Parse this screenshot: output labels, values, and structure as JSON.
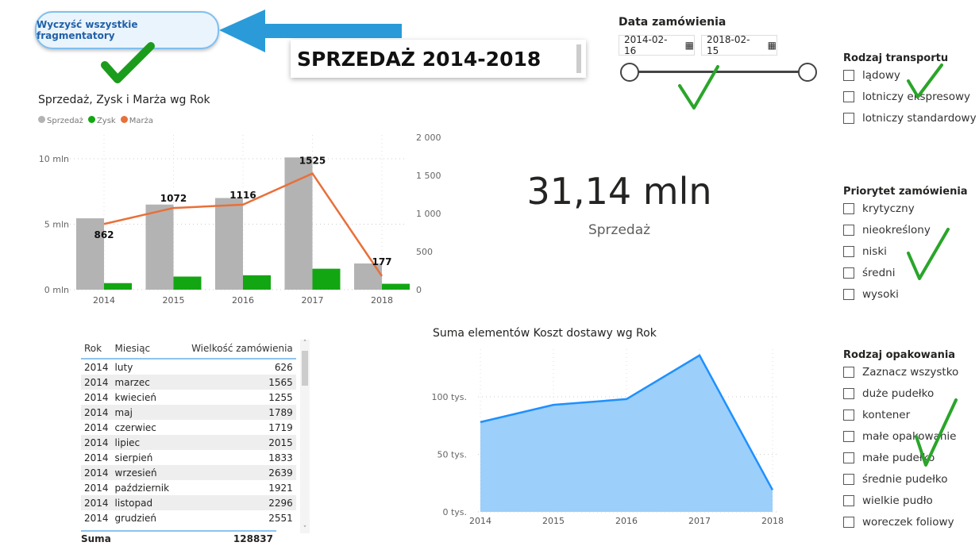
{
  "clear_button": "Wyczyść wszystkie fragmentatory",
  "page_title": "SPRZEDAŻ 2014-2018",
  "date_slicer": {
    "title": "Data zamówienia",
    "start": "2014-02-16",
    "end": "2018-02-15"
  },
  "transport": {
    "title": "Rodzaj transportu",
    "items": [
      "lądowy",
      "lotniczy ekspresowy",
      "lotniczy standardowy"
    ]
  },
  "priority": {
    "title": "Priorytet zamówienia",
    "items": [
      "krytyczny",
      "nieokreślony",
      "niski",
      "średni",
      "wysoki"
    ]
  },
  "packaging": {
    "title": "Rodzaj opakowania",
    "items": [
      "Zaznacz wszystko",
      "duże pudełko",
      "kontener",
      "małe opakowanie",
      "małe pudełko",
      "średnie pudełko",
      "wielkie pudło",
      "woreczek foliowy"
    ]
  },
  "kpi": {
    "value": "31,14 mln",
    "label": "Sprzedaż"
  },
  "table": {
    "headers": [
      "Rok",
      "Miesiąc",
      "Wielkość zamówienia"
    ],
    "rows": [
      [
        "2014",
        "luty",
        "626"
      ],
      [
        "2014",
        "marzec",
        "1565"
      ],
      [
        "2014",
        "kwiecień",
        "1255"
      ],
      [
        "2014",
        "maj",
        "1789"
      ],
      [
        "2014",
        "czerwiec",
        "1719"
      ],
      [
        "2014",
        "lipiec",
        "2015"
      ],
      [
        "2014",
        "sierpień",
        "1833"
      ],
      [
        "2014",
        "wrzesień",
        "2639"
      ],
      [
        "2014",
        "październik",
        "1921"
      ],
      [
        "2014",
        "listopad",
        "2296"
      ],
      [
        "2014",
        "grudzień",
        "2551"
      ]
    ],
    "total_label": "Suma",
    "total_value": "128837"
  },
  "chart_data": [
    {
      "type": "bar",
      "title": "Sprzedaż, Zysk i Marża wg Rok",
      "categories": [
        "2014",
        "2015",
        "2016",
        "2017",
        "2018"
      ],
      "series": [
        {
          "name": "Sprzedaż",
          "axis": "left",
          "color": "#b3b3b3",
          "values": [
            5.45,
            6.5,
            7.0,
            10.1,
            2.0
          ]
        },
        {
          "name": "Zysk",
          "axis": "left",
          "color": "#13a613",
          "values": [
            0.5,
            1.0,
            1.1,
            1.6,
            0.45
          ]
        },
        {
          "name": "Marża",
          "type": "line",
          "axis": "right",
          "color": "#e8703a",
          "values": [
            862,
            1072,
            1116,
            1525,
            177
          ]
        }
      ],
      "left_ticks": [
        "0 mln",
        "5 mln",
        "10 mln"
      ],
      "ylim_left": [
        0,
        11.6
      ],
      "right_ticks": [
        "0",
        "500",
        "1 000",
        "1 500",
        "2 000"
      ],
      "ylim_right": [
        0,
        2000
      ]
    },
    {
      "type": "area",
      "title": "Suma elementów Koszt dostawy wg Rok",
      "categories": [
        "2014",
        "2015",
        "2016",
        "2017",
        "2018"
      ],
      "values": [
        78000,
        93000,
        98000,
        136000,
        19000
      ],
      "color": "#1e90ff",
      "y_ticks": [
        "0 tys.",
        "50 tys.",
        "100 tys."
      ],
      "ylim": [
        0,
        140000
      ]
    }
  ]
}
